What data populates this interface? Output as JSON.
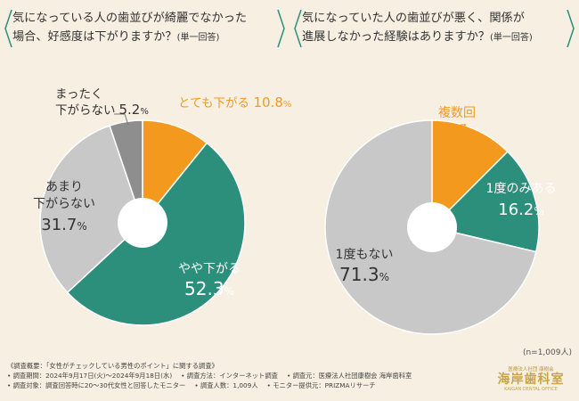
{
  "chart_data": [
    {
      "type": "pie",
      "title_line1": "気になっている人の歯並びが綺麗でなかった",
      "title_line2": "場合、好感度は下がりますか？",
      "title_suffix": "(単一回答)",
      "slices": [
        {
          "label": "とても下がる",
          "value": 10.8,
          "color": "#f39a1e"
        },
        {
          "label": "やや下がる",
          "value": 52.3,
          "color": "#2b8f7c"
        },
        {
          "label": "あまり下がらない",
          "value": 31.7,
          "color": "#c8c8c8"
        },
        {
          "label": "まったく下がらない",
          "value": 5.2,
          "color": "#8e8e8e"
        }
      ]
    },
    {
      "type": "pie",
      "title_line1": "気になっていた人の歯並びが悪く、関係が",
      "title_line2": "進展しなかった経験はありますか？",
      "title_suffix": "(単一回答)",
      "slices": [
        {
          "label": "複数回ある",
          "value": 12.5,
          "color": "#f39a1e"
        },
        {
          "label": "1度のみある",
          "value": 16.2,
          "color": "#2b8f7c"
        },
        {
          "label": "1度もない",
          "value": 71.3,
          "color": "#c8c8c8"
        }
      ]
    }
  ],
  "sample_note": "(n=1,009人)",
  "footer": {
    "line1": "《調査概要：「女性がチェックしている男性のポイント」に関する調査》",
    "line2a": "• 調査期間：2024年9月17日(火)～2024年9月18日(水)",
    "line2b": "• 調査方法：インターネット調査",
    "line2c": "• 調査元：医療法人社団康樹会 海岸歯科室",
    "line3a": "• 調査対象：調査回答時に20～30代女性と回答したモニター",
    "line3b": "• 調査人数：1,009人",
    "line3c": "• モニター提供元：PRIZMAリサーチ"
  },
  "logo": {
    "top": "医療法人社団 康樹会",
    "main": "海岸歯科室",
    "sub": "KAIGAN DENTAL OFFICE"
  }
}
